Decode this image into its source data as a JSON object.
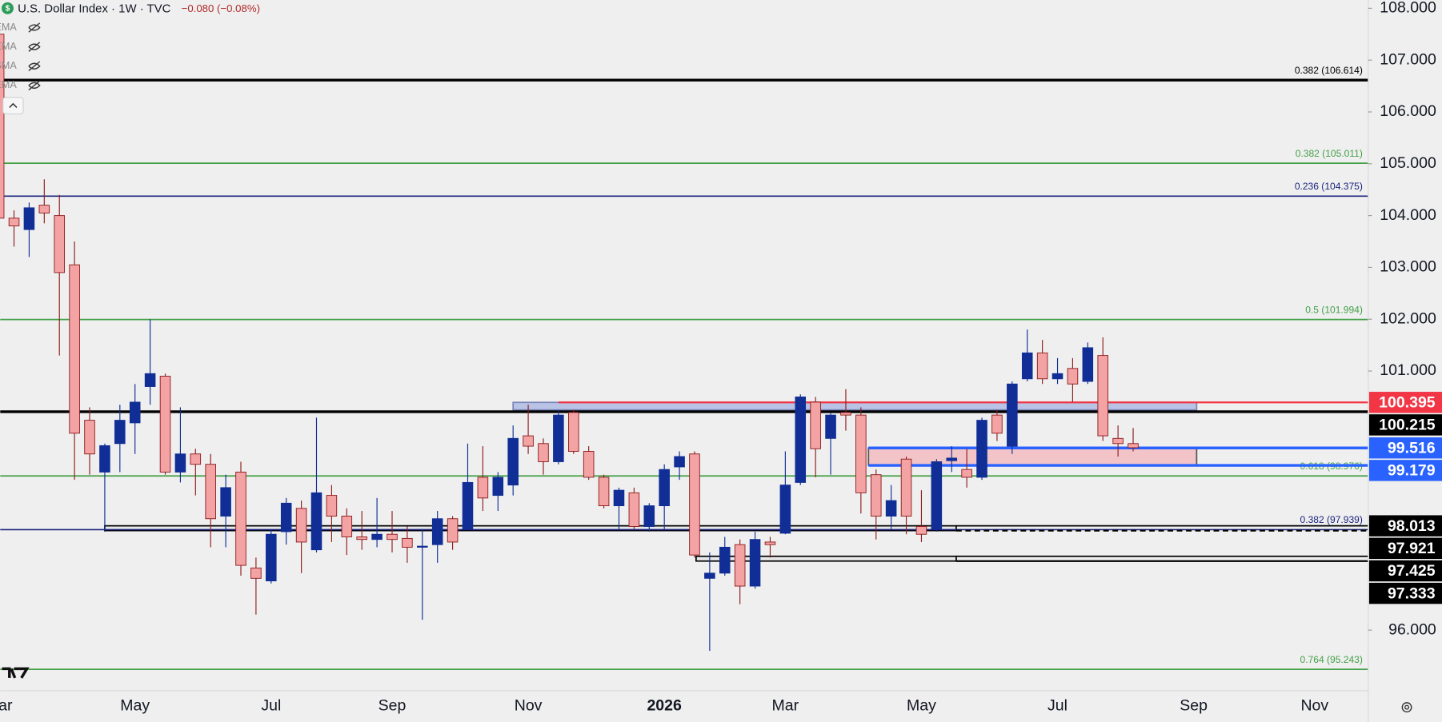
{
  "chart_data": {
    "type": "candlestick",
    "title": "U.S. Dollar Index · 1W · TVC",
    "change": "−0.080 (−0.08%)",
    "indicators": [
      "EMA",
      "EMA",
      "SMA",
      "EMA"
    ],
    "categories": [
      "Mar",
      null,
      null,
      null,
      null,
      null,
      null,
      null,
      null,
      "May",
      null,
      null,
      null,
      null,
      null,
      null,
      null,
      null,
      "Jul",
      null,
      null,
      null,
      null,
      null,
      null,
      null,
      "Sep",
      null,
      null,
      null,
      null,
      null,
      null,
      null,
      null,
      "Nov",
      null,
      null,
      null,
      null,
      null,
      null,
      null,
      null,
      "2026",
      null,
      null,
      null,
      null,
      null,
      null,
      null,
      "Mar",
      null,
      null,
      null,
      null,
      null,
      null,
      null,
      null,
      "May",
      null,
      null,
      null,
      null,
      null,
      null,
      null,
      null,
      "Jul",
      null,
      null,
      null,
      null,
      null,
      null,
      null,
      null,
      "Sep",
      null,
      null,
      null,
      null,
      null,
      null,
      null,
      "Nov",
      null,
      null,
      null
    ],
    "open": [
      107.5,
      103.95,
      103.73,
      104.2,
      104.0,
      103.05,
      100.05,
      99.05,
      99.6,
      100.0,
      100.7,
      100.9,
      99.05,
      99.4,
      99.2,
      98.2,
      99.05,
      97.2,
      96.95,
      97.9,
      98.35,
      97.55,
      98.6,
      98.2,
      97.8,
      97.75,
      97.85,
      97.77,
      97.6,
      97.65,
      98.15,
      97.95,
      98.95,
      98.6,
      98.8,
      99.75,
      99.6,
      99.25,
      100.2,
      99.45,
      98.95,
      98.4,
      98.65,
      98.0,
      98.4,
      99.15,
      99.4,
      97.0,
      97.1,
      97.65,
      96.85,
      97.7,
      97.87,
      98.85,
      100.4,
      99.7,
      100.2,
      100.15,
      99.0,
      98.2,
      99.3,
      98.0,
      97.95,
      99.27,
      99.1,
      98.95,
      100.15,
      99.55,
      100.85,
      101.35,
      100.85,
      101.05,
      100.8,
      101.3,
      99.7,
      99.6,
      null,
      null,
      null,
      null,
      null,
      null,
      null,
      null,
      null,
      null,
      null,
      null,
      null,
      null,
      null
    ],
    "high": [
      107.7,
      104.1,
      104.25,
      104.7,
      104.4,
      103.5,
      100.3,
      99.6,
      100.35,
      100.75,
      102.0,
      100.95,
      100.3,
      99.5,
      99.4,
      99.0,
      99.25,
      97.4,
      97.95,
      98.55,
      98.5,
      100.1,
      98.8,
      98.35,
      98.3,
      98.55,
      98.3,
      98.0,
      97.95,
      98.3,
      98.2,
      99.6,
      99.55,
      99.05,
      99.95,
      100.35,
      99.7,
      100.25,
      100.25,
      99.55,
      99.0,
      98.75,
      98.75,
      98.45,
      99.2,
      99.45,
      99.45,
      97.5,
      97.8,
      97.75,
      97.9,
      97.8,
      99.45,
      100.55,
      100.5,
      100.2,
      100.65,
      100.3,
      99.1,
      98.8,
      99.35,
      98.7,
      99.3,
      99.55,
      99.5,
      100.1,
      100.25,
      100.8,
      101.8,
      101.6,
      101.25,
      101.25,
      101.55,
      101.65,
      99.95,
      99.9,
      null,
      null,
      null,
      null,
      null,
      null,
      null,
      null,
      null,
      null,
      null,
      null,
      null,
      null,
      null
    ],
    "low": [
      103.9,
      103.4,
      103.2,
      103.85,
      101.3,
      98.9,
      99.0,
      97.9,
      99.05,
      99.4,
      100.35,
      99.0,
      98.85,
      98.6,
      97.6,
      97.6,
      97.05,
      96.3,
      96.9,
      97.65,
      97.1,
      97.5,
      97.7,
      97.45,
      97.55,
      97.6,
      97.5,
      97.3,
      96.2,
      97.3,
      97.55,
      97.95,
      98.3,
      98.3,
      98.6,
      99.4,
      99.0,
      99.2,
      99.4,
      98.9,
      98.35,
      97.95,
      97.95,
      97.9,
      97.95,
      98.9,
      97.4,
      95.6,
      97.05,
      96.5,
      96.8,
      97.4,
      97.85,
      98.8,
      98.95,
      99.0,
      99.85,
      98.25,
      97.75,
      97.95,
      97.85,
      97.7,
      97.9,
      99.05,
      98.75,
      98.9,
      99.65,
      99.4,
      100.8,
      100.75,
      100.75,
      100.4,
      100.75,
      99.65,
      99.35,
      99.45,
      null,
      null,
      null,
      null,
      null,
      null,
      null,
      null,
      null,
      null,
      null,
      null,
      null,
      null,
      null
    ],
    "close": [
      103.95,
      103.8,
      104.15,
      104.05,
      102.9,
      99.8,
      99.4,
      99.56,
      100.05,
      100.4,
      100.95,
      99.05,
      99.4,
      99.2,
      98.15,
      98.75,
      97.25,
      97.0,
      97.85,
      98.45,
      97.7,
      98.65,
      98.2,
      97.8,
      97.75,
      97.85,
      97.75,
      97.6,
      97.62,
      98.15,
      97.7,
      98.85,
      98.55,
      98.95,
      99.7,
      99.55,
      99.25,
      100.15,
      99.45,
      98.95,
      98.4,
      98.7,
      98.0,
      98.4,
      99.1,
      99.35,
      97.45,
      97.1,
      97.6,
      96.85,
      97.75,
      97.65,
      98.8,
      100.5,
      99.5,
      100.15,
      100.15,
      98.65,
      98.2,
      98.5,
      98.2,
      97.85,
      99.25,
      99.32,
      98.95,
      100.05,
      99.8,
      100.75,
      101.35,
      100.85,
      100.95,
      100.75,
      101.45,
      99.75,
      99.6,
      99.52,
      null,
      null,
      null,
      null,
      null,
      null,
      null,
      null,
      null,
      null,
      null,
      null,
      null,
      null,
      null
    ],
    "up_color": "#102e96",
    "down_color": "#f4a3a5",
    "down_wick_color": "#8e1c1c",
    "ylim": [
      94.83,
      108.16
    ],
    "yticks": [
      {
        "value": 96,
        "label": "96.000"
      },
      {
        "value": 101,
        "label": "101.000"
      },
      {
        "value": 102,
        "label": "102.000"
      },
      {
        "value": 103,
        "label": "103.000"
      },
      {
        "value": 104,
        "label": "104.000"
      },
      {
        "value": 105,
        "label": "105.000"
      },
      {
        "value": 106,
        "label": "106.000"
      },
      {
        "value": 107,
        "label": "107.000"
      },
      {
        "value": 108,
        "label": "108.000"
      }
    ],
    "levels": [
      {
        "value": 106.614,
        "label": "0.382 (106.614)",
        "color": "#000000",
        "width": 3
      },
      {
        "value": 105.011,
        "label": "0.382 (105.011)",
        "color": "#43a047",
        "width": 1.5
      },
      {
        "value": 104.375,
        "label": "0.236 (104.375)",
        "color": "#1a237e",
        "width": 1.5
      },
      {
        "value": 101.994,
        "label": "0.5 (101.994)",
        "color": "#43a047",
        "width": 1.5
      },
      {
        "value": 100.215,
        "label": null,
        "color": "#000000",
        "width": 3
      },
      {
        "value": 98.976,
        "label": "0.618 (98.976)",
        "color": "#43a047",
        "width": 1.5
      },
      {
        "value": 97.939,
        "label": "0.382 (97.939)",
        "color": "#1a237e",
        "width": 1.5
      },
      {
        "value": 95.243,
        "label": "0.764 (95.243)",
        "color": "#43a047",
        "width": 1.5
      }
    ],
    "zones": [
      {
        "from": 34,
        "to": 79.2,
        "top": 100.395,
        "bottom": 100.25,
        "fill": "#b9c3e6",
        "stroke": "#7b86b8"
      },
      {
        "from": 57.5,
        "to": 79.2,
        "top": 99.516,
        "bottom": 99.179,
        "fill": "#f2c3c7",
        "stroke": "#555555"
      },
      {
        "from": 7,
        "to": 63.3,
        "top": 98.013,
        "bottom": 97.921,
        "fill": "#e8e8e8",
        "stroke": "#000000"
      },
      {
        "from": 46.1,
        "to": 63.3,
        "top": 97.425,
        "bottom": 97.333,
        "fill": "#e8e8e8",
        "stroke": "#000000"
      }
    ],
    "rays": [
      {
        "value": 100.395,
        "from": 37,
        "color": "#f23645",
        "width": 2,
        "dash": false
      },
      {
        "value": 99.516,
        "from": 57.5,
        "color": "#2962ff",
        "width": 3,
        "dash": false
      },
      {
        "value": 99.179,
        "from": 57.5,
        "color": "#2962ff",
        "width": 3,
        "dash": false
      },
      {
        "value": 98.013,
        "from": 63.3,
        "color": "#000000",
        "width": 1.5,
        "dash": false
      },
      {
        "value": 97.921,
        "from": 63.3,
        "color": "#000000",
        "width": 2,
        "dash": true
      },
      {
        "value": 97.425,
        "from": 63.3,
        "color": "#000000",
        "width": 1.5,
        "dash": false
      },
      {
        "value": 97.333,
        "from": 63.3,
        "color": "#000000",
        "width": 2,
        "dash": false
      }
    ],
    "price_labels": [
      {
        "value": 100.395,
        "color": "#f23645"
      },
      {
        "value": 100.215,
        "color": "#000000"
      },
      {
        "value": 99.516,
        "color": "#2962ff"
      },
      {
        "value": 99.179,
        "color": "#2962ff"
      },
      {
        "value": 98.013,
        "color": "#000000"
      },
      {
        "value": 97.921,
        "color": "#000000"
      },
      {
        "value": 97.425,
        "color": "#000000"
      },
      {
        "value": 97.333,
        "color": "#000000"
      }
    ]
  }
}
